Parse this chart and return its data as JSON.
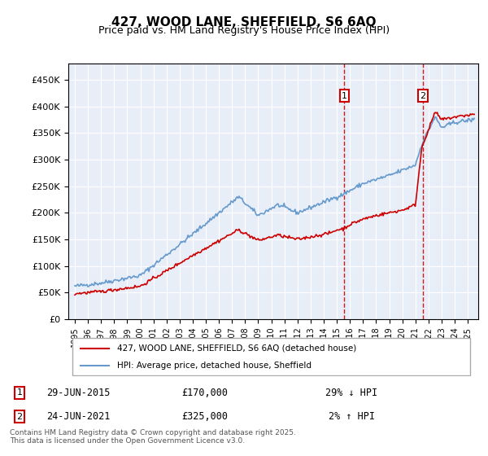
{
  "title": "427, WOOD LANE, SHEFFIELD, S6 6AQ",
  "subtitle": "Price paid vs. HM Land Registry's House Price Index (HPI)",
  "legend_property": "427, WOOD LANE, SHEFFIELD, S6 6AQ (detached house)",
  "legend_hpi": "HPI: Average price, detached house, Sheffield",
  "transaction1_date": "29-JUN-2015",
  "transaction1_price": 170000,
  "transaction1_note": "29% ↓ HPI",
  "transaction1_label": "1",
  "transaction2_date": "24-JUN-2021",
  "transaction2_price": 325000,
  "transaction2_note": "2% ↑ HPI",
  "transaction2_label": "2",
  "footer": "Contains HM Land Registry data © Crown copyright and database right 2025.\nThis data is licensed under the Open Government Licence v3.0.",
  "ylim": [
    0,
    480000
  ],
  "yticks": [
    0,
    50000,
    100000,
    150000,
    200000,
    250000,
    300000,
    350000,
    400000,
    450000
  ],
  "property_color": "#cc0000",
  "hpi_color": "#6699cc",
  "vline_color": "#cc0000",
  "background_color": "#f0f4ff",
  "plot_bg_color": "#e8eef8",
  "grid_color": "#ffffff",
  "box_color": "#cc0000"
}
